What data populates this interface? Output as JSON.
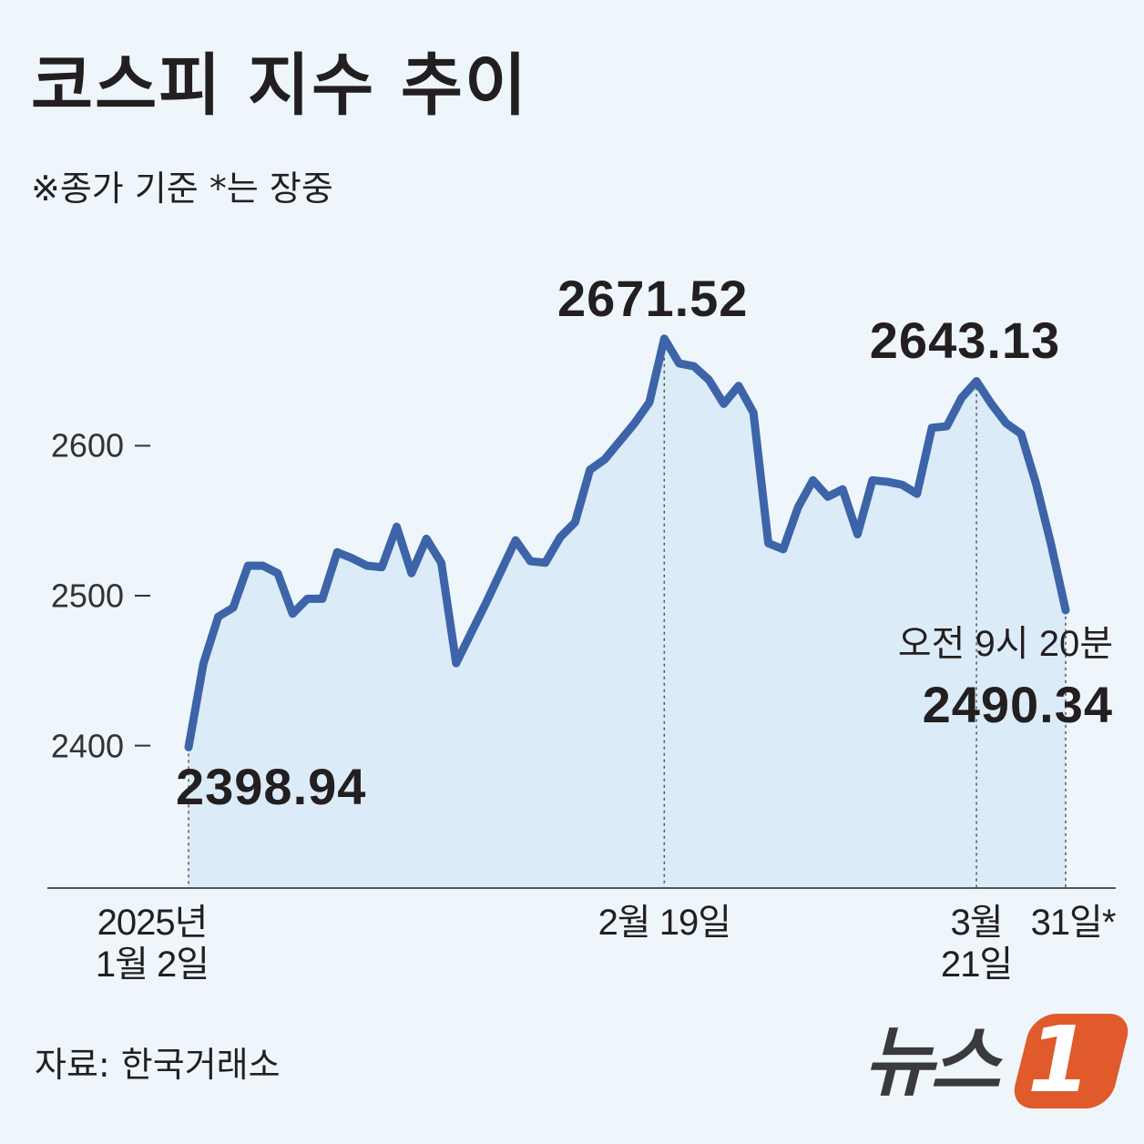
{
  "title": "코스피 지수 추이",
  "subtitle": "※종가 기준   *는 장중",
  "source": "자료: 한국거래소",
  "logo": {
    "text": "뉴스",
    "mark": "1"
  },
  "chart_data": {
    "type": "line",
    "color": "#3d64a8",
    "fill": "#dcebf8",
    "categories": [
      "2025년\n1월 2일",
      null,
      null,
      null,
      null,
      null,
      null,
      null,
      null,
      null,
      null,
      null,
      null,
      null,
      null,
      null,
      null,
      null,
      null,
      null,
      null,
      null,
      null,
      null,
      null,
      null,
      null,
      null,
      null,
      null,
      null,
      null,
      "2월 19일",
      null,
      null,
      null,
      null,
      null,
      null,
      null,
      null,
      null,
      null,
      null,
      null,
      null,
      null,
      null,
      null,
      null,
      null,
      null,
      null,
      "3월\n21일",
      null,
      null,
      null,
      null,
      null,
      "31일*"
    ],
    "values": [
      2398.94,
      2454.7,
      2486,
      2492,
      2520,
      2520,
      2515,
      2488,
      2498,
      2498,
      2529,
      2525,
      2520,
      2519,
      2546,
      2515,
      2538,
      2522,
      2455,
      2475,
      2495,
      2516,
      2537,
      2523,
      2522,
      2539,
      2549,
      2584,
      2591,
      2603,
      2615,
      2629,
      2671.52,
      2655,
      2653,
      2644,
      2628,
      2640,
      2622,
      2535,
      2531,
      2559,
      2577,
      2566,
      2571,
      2541,
      2577,
      2576,
      2574,
      2568,
      2612,
      2613,
      2632,
      2643.13,
      2628,
      2615,
      2608,
      2575,
      2535,
      2490.34
    ],
    "value_labels": [
      "2398.94",
      null,
      null,
      null,
      null,
      null,
      null,
      null,
      null,
      null,
      null,
      null,
      null,
      null,
      null,
      null,
      null,
      null,
      null,
      null,
      null,
      null,
      null,
      null,
      null,
      null,
      null,
      null,
      null,
      null,
      null,
      null,
      "2671.52",
      null,
      null,
      null,
      null,
      null,
      null,
      null,
      null,
      null,
      null,
      null,
      null,
      null,
      null,
      null,
      null,
      null,
      null,
      null,
      null,
      "2643.13",
      null,
      null,
      null,
      null,
      null,
      "2490.34"
    ],
    "last_label_note": "오전 9시 20분",
    "ylim": [
      2305,
      2740
    ],
    "yticks": [
      2400,
      2500,
      2600
    ],
    "grid": false
  }
}
